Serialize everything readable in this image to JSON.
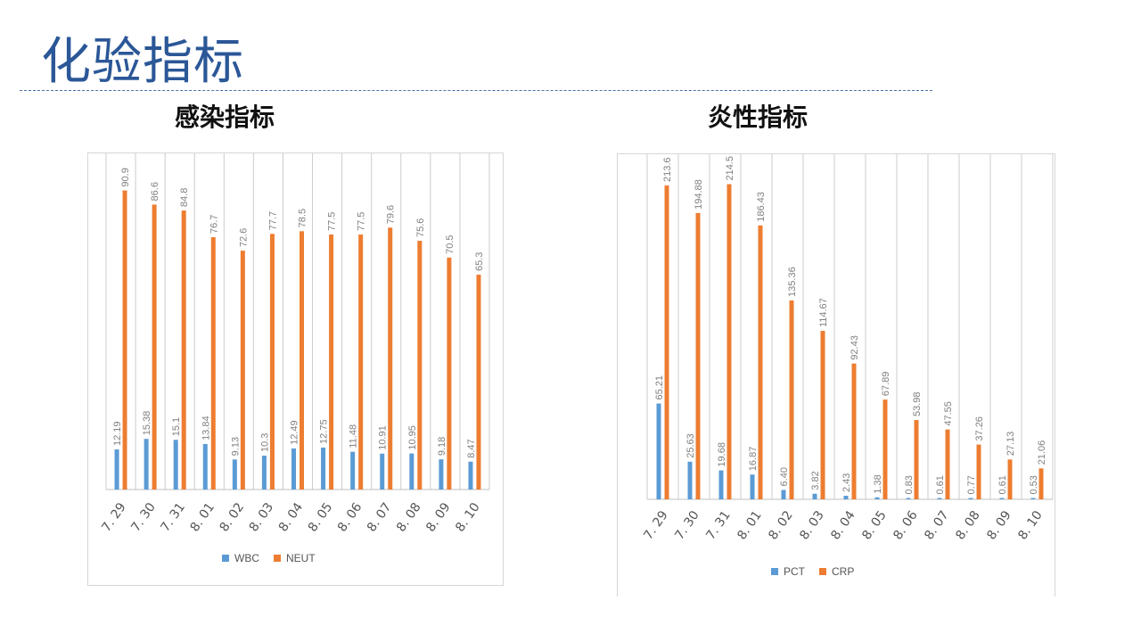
{
  "page": {
    "title": "化验指标"
  },
  "colors": {
    "title": "#2b5797",
    "series_blue": "#5b9bd5",
    "series_orange": "#ed7d31",
    "grid": "#cccccc",
    "label": "#808080"
  },
  "chart_data": [
    {
      "type": "bar",
      "title": "感染指标",
      "categories": [
        "7. 29",
        "7. 30",
        "7. 31",
        "8. 01",
        "8. 02",
        "8. 03",
        "8. 04",
        "8. 05",
        "8. 06",
        "8. 07",
        "8. 08",
        "8. 09",
        "8. 10"
      ],
      "series": [
        {
          "name": "WBC",
          "values": [
            12.19,
            15.38,
            15.1,
            13.84,
            9.13,
            10.3,
            12.49,
            12.75,
            11.48,
            10.91,
            10.95,
            9.18,
            8.47
          ],
          "labels": [
            "12.19",
            "15.38",
            "15.1",
            "13.84",
            "9.13",
            "10.3",
            "12.49",
            "12.75",
            "11.48",
            "10.91",
            "10.95",
            "9.18",
            "8.47"
          ]
        },
        {
          "name": "NEUT",
          "values": [
            90.9,
            86.6,
            84.8,
            76.7,
            72.6,
            77.7,
            78.5,
            77.5,
            77.5,
            79.6,
            75.6,
            70.5,
            65.3
          ],
          "labels": [
            "90.9",
            "86.6",
            "84.8",
            "76.7",
            "72.6",
            "77.7",
            "78.5",
            "77.5",
            "77.5",
            "79.6",
            "75.6",
            "70.5",
            "65.3"
          ]
        }
      ],
      "ylim": [
        0,
        100
      ],
      "grid": "vertical",
      "legend": "bottom"
    },
    {
      "type": "bar",
      "title": "炎性指标",
      "categories": [
        "7. 29",
        "7. 30",
        "7. 31",
        "8. 01",
        "8. 02",
        "8. 03",
        "8. 04",
        "8. 05",
        "8. 06",
        "8. 07",
        "8. 08",
        "8. 09",
        "8. 10"
      ],
      "series": [
        {
          "name": "PCT",
          "values": [
            65.21,
            25.63,
            19.68,
            16.87,
            6.4,
            3.82,
            2.43,
            1.38,
            0.83,
            0.61,
            0.77,
            0.61,
            0.53
          ],
          "labels": [
            "65.21",
            "25.63",
            "19.68",
            "16.87",
            "6.40",
            "3.82",
            "2.43",
            "1.38",
            "0.83",
            "0.61",
            "0.77",
            "0.61",
            "0.53"
          ]
        },
        {
          "name": "CRP",
          "values": [
            213.6,
            194.88,
            214.5,
            186.43,
            135.36,
            114.67,
            92.43,
            67.89,
            53.98,
            47.55,
            37.26,
            27.13,
            21.06
          ],
          "labels": [
            "213.6",
            "194.88",
            "214.5",
            "186.43",
            "135.36",
            "114.67",
            "92.43",
            "67.89",
            "53.98",
            "47.55",
            "37.26",
            "27.13",
            "21.06"
          ]
        }
      ],
      "ylim": [
        0,
        230
      ],
      "grid": "vertical",
      "legend": "bottom"
    }
  ]
}
